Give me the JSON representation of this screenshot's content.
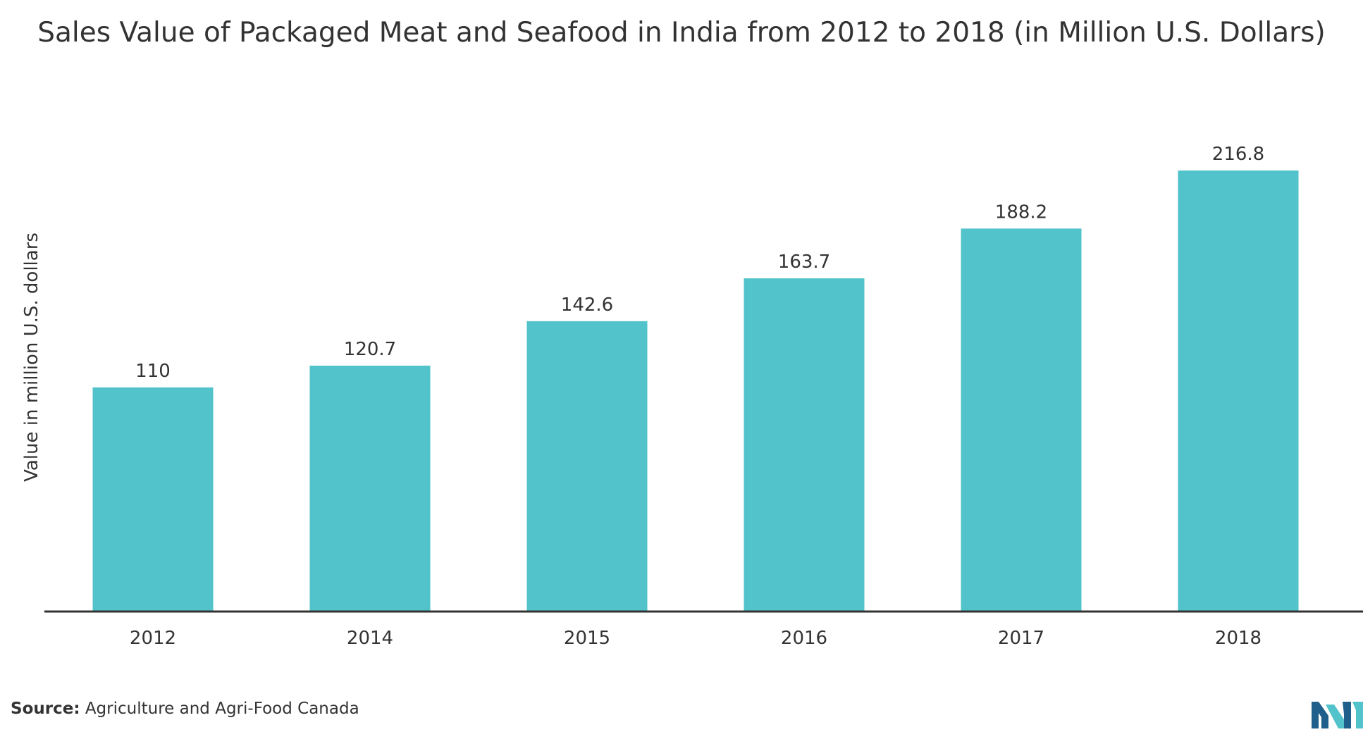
{
  "chart_data": {
    "type": "bar",
    "title": "Sales Value of Packaged Meat and Seafood in India from 2012 to 2018 (in Million U.S. Dollars)",
    "xlabel": "",
    "ylabel": "Value in million U.S. dollars",
    "categories": [
      "2012",
      "2014",
      "2015",
      "2016",
      "2017",
      "2018"
    ],
    "values": [
      110,
      120.7,
      142.6,
      163.7,
      188.2,
      216.8
    ],
    "data_labels": [
      "110",
      "120.7",
      "142.6",
      "163.7",
      "188.2",
      "216.8"
    ],
    "ylim": [
      0,
      220
    ],
    "grid": false,
    "legend": "none",
    "bar_color": "#52c3ca",
    "axis_color": "#333333"
  },
  "source": {
    "label": "Source:",
    "text": "Agriculture and Agri-Food Canada"
  },
  "logo": {
    "icon": "mordor-intelligence-logo-icon",
    "colors": [
      "#1f5f8b",
      "#52c3ca"
    ]
  }
}
